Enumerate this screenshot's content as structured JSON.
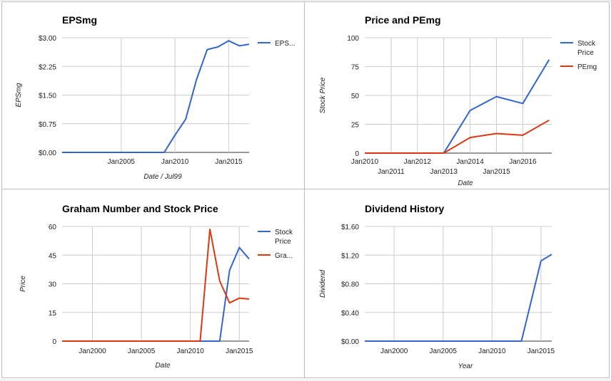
{
  "chart_data": [
    {
      "id": "eps",
      "type": "line",
      "title": "EPSmg",
      "xlabel": "Date / Jul99",
      "ylabel": "EPSmg",
      "xlim": [
        1999.5,
        2016.9
      ],
      "ylim": [
        0,
        3
      ],
      "yticks": [
        {
          "v": 0,
          "label": "$0.00"
        },
        {
          "v": 0.75,
          "label": "$0.75"
        },
        {
          "v": 1.5,
          "label": "$1.50"
        },
        {
          "v": 2.25,
          "label": "$2.25"
        },
        {
          "v": 3,
          "label": "$3.00"
        }
      ],
      "xticks": [
        {
          "v": 2005,
          "label": "Jan2005",
          "row": 0
        },
        {
          "v": 2010,
          "label": "Jan2010",
          "row": 0
        },
        {
          "v": 2015,
          "label": "Jan2015",
          "row": 0
        }
      ],
      "xgrid": [
        2005,
        2010,
        2015
      ],
      "legend": {
        "position": "right"
      },
      "series": [
        {
          "name": "EPS...",
          "color": "#3366cc",
          "x": [
            1999.5,
            2000,
            2001,
            2002,
            2003,
            2004,
            2005,
            2006,
            2007,
            2008,
            2009,
            2010,
            2011,
            2012,
            2013,
            2014,
            2015,
            2016,
            2016.9
          ],
          "values": [
            0,
            0,
            0,
            0,
            0,
            0,
            0,
            0,
            0,
            0,
            0,
            0.45,
            0.87,
            1.9,
            2.69,
            2.76,
            2.92,
            2.79,
            2.83
          ]
        }
      ]
    },
    {
      "id": "price",
      "type": "line",
      "title": "Price and PEmg",
      "xlabel": "Date",
      "ylabel": "Stock Price",
      "xlim": [
        2010,
        2017.1
      ],
      "ylim": [
        0,
        100
      ],
      "yticks": [
        {
          "v": 0,
          "label": "0"
        },
        {
          "v": 25,
          "label": "25"
        },
        {
          "v": 50,
          "label": "50"
        },
        {
          "v": 75,
          "label": "75"
        },
        {
          "v": 100,
          "label": "100"
        }
      ],
      "xticks": [
        {
          "v": 2010,
          "label": "Jan2010",
          "row": 0
        },
        {
          "v": 2011,
          "label": "Jan2011",
          "row": 1
        },
        {
          "v": 2012,
          "label": "Jan2012",
          "row": 0
        },
        {
          "v": 2013,
          "label": "Jan2013",
          "row": 1
        },
        {
          "v": 2014,
          "label": "Jan2014",
          "row": 0
        },
        {
          "v": 2015,
          "label": "Jan2015",
          "row": 1
        },
        {
          "v": 2016,
          "label": "Jan2016",
          "row": 0
        }
      ],
      "xgrid": [
        2011,
        2012,
        2013,
        2014,
        2015,
        2016
      ],
      "legend": {
        "position": "right"
      },
      "series": [
        {
          "name": "Stock Price",
          "color": "#3366cc",
          "x": [
            2010,
            2011,
            2012,
            2013,
            2014,
            2015,
            2016,
            2017
          ],
          "values": [
            0,
            0,
            0,
            0,
            37,
            49,
            43,
            81
          ]
        },
        {
          "name": "PEmg",
          "color": "#dc3912",
          "x": [
            2010,
            2011,
            2012,
            2013,
            2014,
            2015,
            2016,
            2017
          ],
          "values": [
            0,
            0,
            0,
            0,
            13.5,
            17,
            15.5,
            28.5
          ]
        }
      ]
    },
    {
      "id": "graham",
      "type": "line",
      "title": "Graham Number and Stock Price",
      "xlabel": "Date",
      "ylabel": "Price",
      "xlim": [
        1996.9,
        2016
      ],
      "ylim": [
        0,
        60
      ],
      "yticks": [
        {
          "v": 0,
          "label": "0"
        },
        {
          "v": 15,
          "label": "15"
        },
        {
          "v": 30,
          "label": "30"
        },
        {
          "v": 45,
          "label": "45"
        },
        {
          "v": 60,
          "label": "60"
        }
      ],
      "xticks": [
        {
          "v": 2000,
          "label": "Jan2000",
          "row": 0
        },
        {
          "v": 2005,
          "label": "Jan2005",
          "row": 0
        },
        {
          "v": 2010,
          "label": "Jan2010",
          "row": 0
        },
        {
          "v": 2015,
          "label": "Jan2015",
          "row": 0
        }
      ],
      "xgrid": [
        2000,
        2005,
        2010,
        2015
      ],
      "legend": {
        "position": "right"
      },
      "series": [
        {
          "name": "Stock Price",
          "color": "#3366cc",
          "x": [
            1996.9,
            2013,
            2014,
            2015,
            2016
          ],
          "values": [
            0,
            0,
            37,
            49,
            43
          ]
        },
        {
          "name": "Gra...",
          "color": "#dc3912",
          "x": [
            1996.9,
            2011,
            2012,
            2013,
            2014,
            2015,
            2016
          ],
          "values": [
            0,
            0,
            58.5,
            31.5,
            20,
            22.5,
            22
          ]
        }
      ]
    },
    {
      "id": "dividend",
      "type": "line",
      "title": "Dividend History",
      "xlabel": "Year",
      "ylabel": "Dividend",
      "xlim": [
        1997,
        2016.1
      ],
      "ylim": [
        0,
        1.6
      ],
      "yticks": [
        {
          "v": 0,
          "label": "$0.00"
        },
        {
          "v": 0.4,
          "label": "$0.40"
        },
        {
          "v": 0.8,
          "label": "$0.80"
        },
        {
          "v": 1.2,
          "label": "$1.20"
        },
        {
          "v": 1.6,
          "label": "$1.60"
        }
      ],
      "xticks": [
        {
          "v": 2000,
          "label": "Jan2000",
          "row": 0
        },
        {
          "v": 2005,
          "label": "Jan2005",
          "row": 0
        },
        {
          "v": 2010,
          "label": "Jan2010",
          "row": 0
        },
        {
          "v": 2015,
          "label": "Jan2015",
          "row": 0
        }
      ],
      "xgrid": [
        2000,
        2005,
        2010,
        2015
      ],
      "legend": null,
      "series": [
        {
          "name": "",
          "color": "#3366cc",
          "x": [
            1997,
            2013,
            2015,
            2016.1
          ],
          "values": [
            0,
            0,
            1.12,
            1.21
          ]
        }
      ]
    }
  ]
}
